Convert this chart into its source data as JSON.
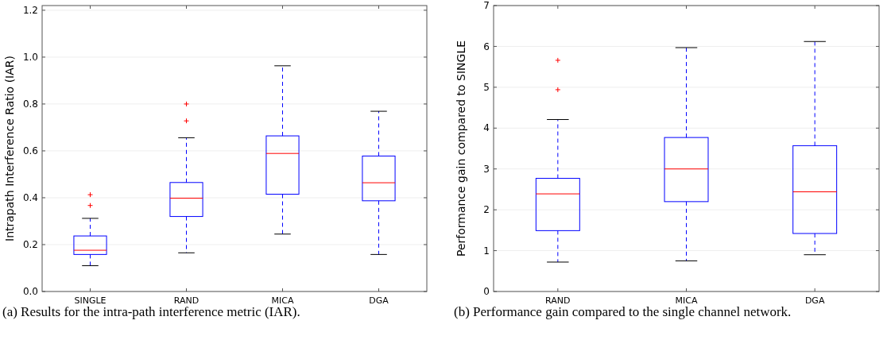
{
  "chart_data": [
    {
      "type": "box",
      "ylabel": "Intrapath Interference Ratio (IAR)",
      "categories": [
        "SINGLE",
        "RAND",
        "MICA",
        "DGA"
      ],
      "ylim": [
        0,
        1.22
      ],
      "yticks": [
        {
          "value": 0,
          "label": "0.0"
        },
        {
          "value": 0.2,
          "label": "0.2"
        },
        {
          "value": 0.4,
          "label": "0.4"
        },
        {
          "value": 0.6,
          "label": "0.6"
        },
        {
          "value": 0.8,
          "label": "0.8"
        },
        {
          "value": 1,
          "label": "1.0"
        },
        {
          "value": 1.2,
          "label": "1.2"
        }
      ],
      "grid": "y",
      "annotations": [
        "(a) Results for the intra-path interference metric (IAR)."
      ],
      "series": [
        {
          "color": "#0000ff",
          "boxes": [
            {
              "low": 0.11,
              "q1": 0.158,
              "median": 0.176,
              "q3": 0.237,
              "high": 0.312,
              "outliers": [
                0.413,
                0.367
              ]
            },
            {
              "low": 0.165,
              "q1": 0.32,
              "median": 0.398,
              "q3": 0.465,
              "high": 0.656,
              "outliers": [
                0.8,
                0.728
              ]
            },
            {
              "low": 0.245,
              "q1": 0.415,
              "median": 0.589,
              "q3": 0.664,
              "high": 0.963
            },
            {
              "low": 0.158,
              "q1": 0.387,
              "median": 0.464,
              "q3": 0.578,
              "high": 0.769
            }
          ]
        }
      ]
    },
    {
      "type": "box",
      "ylabel": "Performance gain compared to SINGLE",
      "categories": [
        "RAND",
        "MICA",
        "DGA"
      ],
      "ylim": [
        0,
        7
      ],
      "yticks": [
        0,
        1,
        2,
        3,
        4,
        5,
        6,
        7
      ],
      "grid": "y",
      "annotations": [
        "(b) Performance gain compared to the single channel network."
      ],
      "series": [
        {
          "color": "#0000ff",
          "boxes": [
            {
              "low": 0.72,
              "q1": 1.49,
              "median": 2.39,
              "q3": 2.77,
              "high": 4.21,
              "outliers": [
                5.66,
                4.94
              ]
            },
            {
              "low": 0.75,
              "q1": 2.2,
              "median": 3.0,
              "q3": 3.77,
              "high": 5.97
            },
            {
              "low": 0.9,
              "q1": 1.42,
              "median": 2.44,
              "q3": 3.57,
              "high": 6.12
            }
          ]
        }
      ]
    }
  ]
}
